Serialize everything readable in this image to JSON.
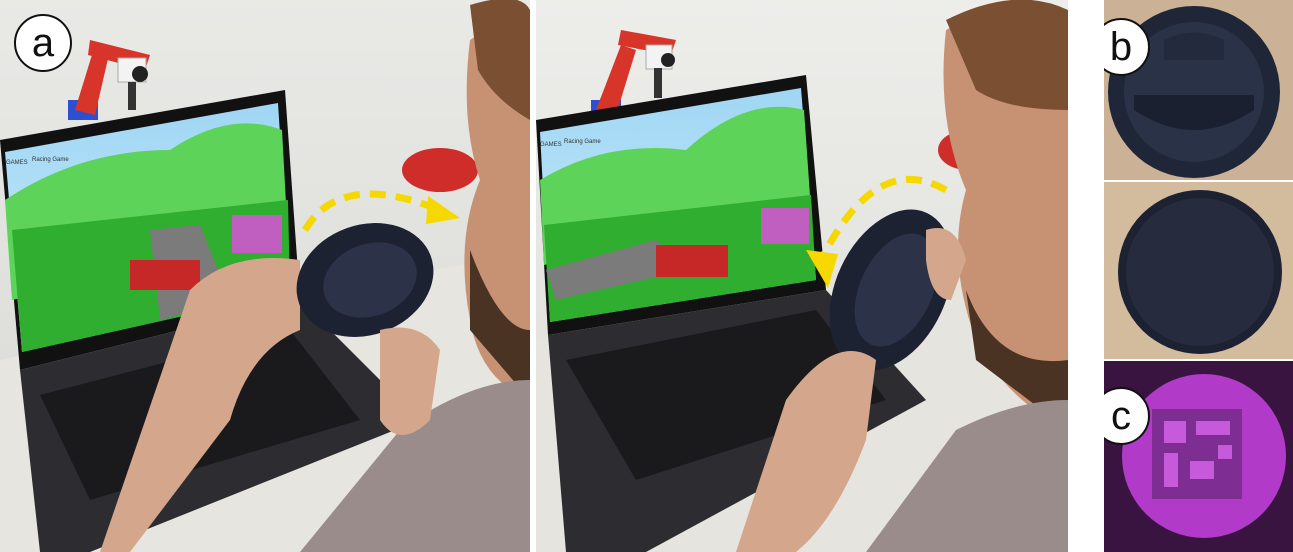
{
  "figure": {
    "labels": {
      "a": "a",
      "b": "b",
      "c": "c"
    },
    "screen_menu": [
      "GAMES",
      "Racing Game"
    ],
    "colors": {
      "arrow": "#f5d800",
      "lens_dark": "#1d2233",
      "marker_magenta": "#b13ac9",
      "sky": "#a9dcf5",
      "grass": "#2fae2f",
      "robot_arm": "#d8352a"
    },
    "icons": [
      "camera-icon",
      "curved-arrow-icon"
    ]
  }
}
